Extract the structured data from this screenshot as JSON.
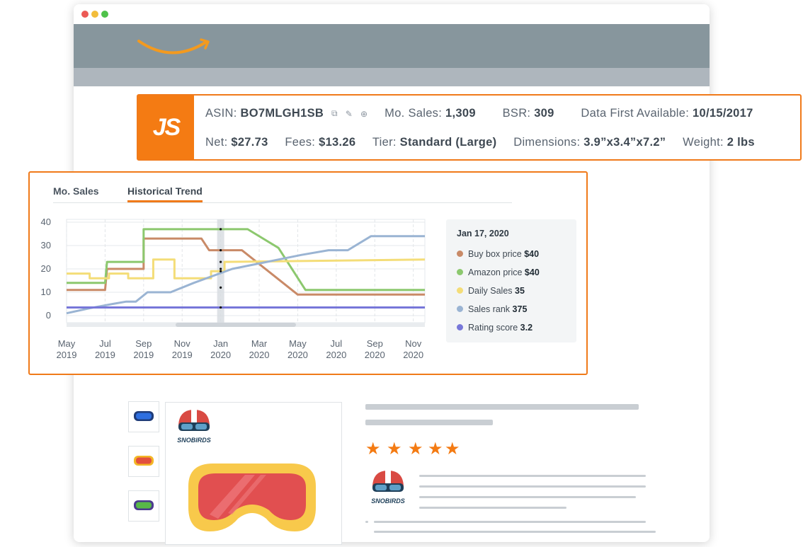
{
  "window": {
    "controls": [
      "close",
      "minimize",
      "maximize"
    ]
  },
  "colors": {
    "accent": "#f07a1a",
    "nav": "#87969d",
    "subnav": "#aeb6bd",
    "star": "#f47b13"
  },
  "product_info": {
    "badge": "JS",
    "asin_label": "ASIN:",
    "asin": "BO7MLGH1SB",
    "icons": [
      "copy-icon",
      "link-icon",
      "add-icon"
    ],
    "mo_sales_label": "Mo. Sales:",
    "mo_sales": "1,309",
    "bsr_label": "BSR:",
    "bsr": "309",
    "first_available_label": "Data First Available:",
    "first_available": "10/15/2017",
    "net_label": "Net:",
    "net": "$27.73",
    "fees_label": "Fees:",
    "fees": "$13.26",
    "tier_label": "Tier:",
    "tier": "Standard (Large)",
    "dimensions_label": "Dimensions:",
    "dimensions": "3.9”x3.4”x7.2”",
    "weight_label": "Weight:",
    "weight": "2 lbs"
  },
  "tabs": [
    {
      "label": "Mo. Sales",
      "active": false
    },
    {
      "label": "Historical Trend",
      "active": true
    }
  ],
  "chart_data": {
    "type": "line",
    "y_ticks": [
      "0",
      "10",
      "20",
      "30",
      "40"
    ],
    "ylim": [
      0,
      40
    ],
    "x_ticks": [
      {
        "month": "May",
        "year": "2019"
      },
      {
        "month": "Jul",
        "year": "2019"
      },
      {
        "month": "Sep",
        "year": "2019"
      },
      {
        "month": "Nov",
        "year": "2019"
      },
      {
        "month": "Jan",
        "year": "2020"
      },
      {
        "month": "Mar",
        "year": "2020"
      },
      {
        "month": "May",
        "year": "2020"
      },
      {
        "month": "Jul",
        "year": "2020"
      },
      {
        "month": "Sep",
        "year": "2020"
      },
      {
        "month": "Nov",
        "year": "2020"
      }
    ],
    "grid": true,
    "highlight_date": "Jan 17, 2020",
    "series": [
      {
        "name": "Buy box price",
        "color": "#c98a67",
        "step": true,
        "points": [
          [
            0,
            11
          ],
          [
            1,
            11
          ],
          [
            1.05,
            20
          ],
          [
            2,
            20
          ],
          [
            2,
            33
          ],
          [
            3.5,
            33
          ],
          [
            3.7,
            28
          ],
          [
            4.55,
            28
          ],
          [
            6,
            9
          ],
          [
            9.3,
            9
          ]
        ]
      },
      {
        "name": "Amazon price",
        "color": "#8cc86e",
        "step": true,
        "points": [
          [
            0,
            14
          ],
          [
            1,
            14
          ],
          [
            1.05,
            23
          ],
          [
            2,
            23
          ],
          [
            2,
            37
          ],
          [
            4.7,
            37
          ],
          [
            5.5,
            29
          ],
          [
            6.2,
            11
          ],
          [
            9.3,
            11
          ]
        ]
      },
      {
        "name": "Daily Sales",
        "color": "#f4dd78",
        "step": true,
        "points": [
          [
            0,
            18
          ],
          [
            0.6,
            18
          ],
          [
            0.6,
            16
          ],
          [
            1.1,
            16
          ],
          [
            1.1,
            18
          ],
          [
            1.6,
            18
          ],
          [
            1.6,
            16
          ],
          [
            2.25,
            16
          ],
          [
            2.25,
            24
          ],
          [
            2.8,
            24
          ],
          [
            2.8,
            16
          ],
          [
            3.75,
            16
          ],
          [
            3.75,
            19
          ],
          [
            4.1,
            19
          ],
          [
            4.1,
            23
          ],
          [
            9.3,
            24
          ]
        ]
      },
      {
        "name": "Sales rank",
        "color": "#9ab4d3",
        "step": false,
        "points": [
          [
            0,
            1
          ],
          [
            0.55,
            3
          ],
          [
            1.2,
            5
          ],
          [
            1.55,
            6
          ],
          [
            1.8,
            6
          ],
          [
            2.1,
            10
          ],
          [
            2.3,
            10
          ],
          [
            2.7,
            10
          ],
          [
            3.3,
            14
          ],
          [
            4.3,
            20
          ],
          [
            5.2,
            23
          ],
          [
            6.1,
            26
          ],
          [
            6.8,
            28
          ],
          [
            7.3,
            28
          ],
          [
            7.9,
            34
          ],
          [
            9.3,
            34
          ]
        ]
      },
      {
        "name": "Rating score",
        "color": "#7777d9",
        "step": false,
        "points": [
          [
            0,
            3.5
          ],
          [
            9.3,
            3.5
          ]
        ]
      }
    ]
  },
  "legend": {
    "date": "Jan 17, 2020",
    "items": [
      {
        "label": "Buy box price",
        "value": "$40",
        "color": "#c98a67"
      },
      {
        "label": "Amazon price",
        "value": "$40",
        "color": "#8cc86e"
      },
      {
        "label": "Daily Sales",
        "value": "35",
        "color": "#f4dd78"
      },
      {
        "label": "Sales rank",
        "value": "375",
        "color": "#9ab4d3"
      },
      {
        "label": "Rating score",
        "value": "3.2",
        "color": "#7777d9"
      }
    ]
  },
  "product": {
    "brand": "SNOBIRDS",
    "rating_stars": 5,
    "thumbnails": [
      {
        "name": "blue-goggles-icon",
        "lens_color": "#2e6fe0"
      },
      {
        "name": "yellow-goggles-icon",
        "lens_color": "#f3b626"
      },
      {
        "name": "green-goggles-icon",
        "lens_color": "#58b848"
      }
    ]
  }
}
